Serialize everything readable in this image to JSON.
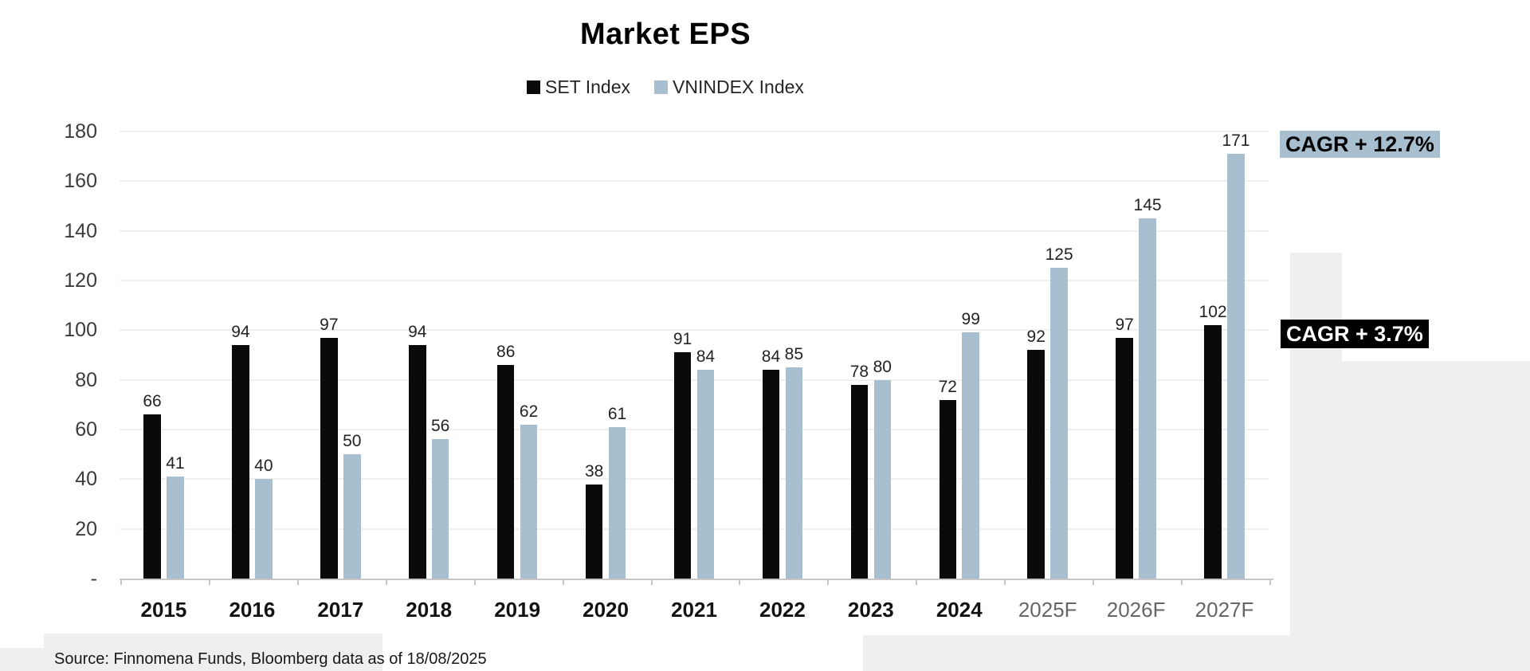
{
  "title": "Market EPS",
  "legend": [
    {
      "label": "SET Index",
      "color": "#0a0a0a"
    },
    {
      "label": "VNINDEX Index",
      "color": "#a7bfce"
    }
  ],
  "chart_data": {
    "type": "bar",
    "title": "Market EPS",
    "categories": [
      "2015",
      "2016",
      "2017",
      "2018",
      "2019",
      "2020",
      "2021",
      "2022",
      "2023",
      "2024",
      "2025F",
      "2026F",
      "2027F"
    ],
    "forecast_categories": [
      "2025F",
      "2026F",
      "2027F"
    ],
    "series": [
      {
        "name": "SET Index",
        "color": "#0a0a0a",
        "values": [
          66,
          94,
          97,
          94,
          86,
          38,
          91,
          84,
          78,
          72,
          92,
          97,
          102
        ]
      },
      {
        "name": "VNINDEX Index",
        "color": "#a7bfce",
        "values": [
          41,
          40,
          50,
          56,
          62,
          61,
          84,
          85,
          80,
          99,
          125,
          145,
          171
        ]
      }
    ],
    "ylim": [
      0,
      180
    ],
    "ytick_step": 20,
    "ytick_labels": [
      "-",
      "20",
      "40",
      "60",
      "80",
      "100",
      "120",
      "140",
      "160",
      "180"
    ],
    "grid": true,
    "legend_position": "top",
    "value_labels": true
  },
  "annotations": [
    {
      "text": "CAGR + 12.7%",
      "bg": "#a7bfce",
      "fg": "#000000"
    },
    {
      "text": "CAGR + 3.7%",
      "bg": "#000000",
      "fg": "#ffffff"
    }
  ],
  "source_note": "Source: Finnomena Funds, Bloomberg data as of 18/08/2025"
}
